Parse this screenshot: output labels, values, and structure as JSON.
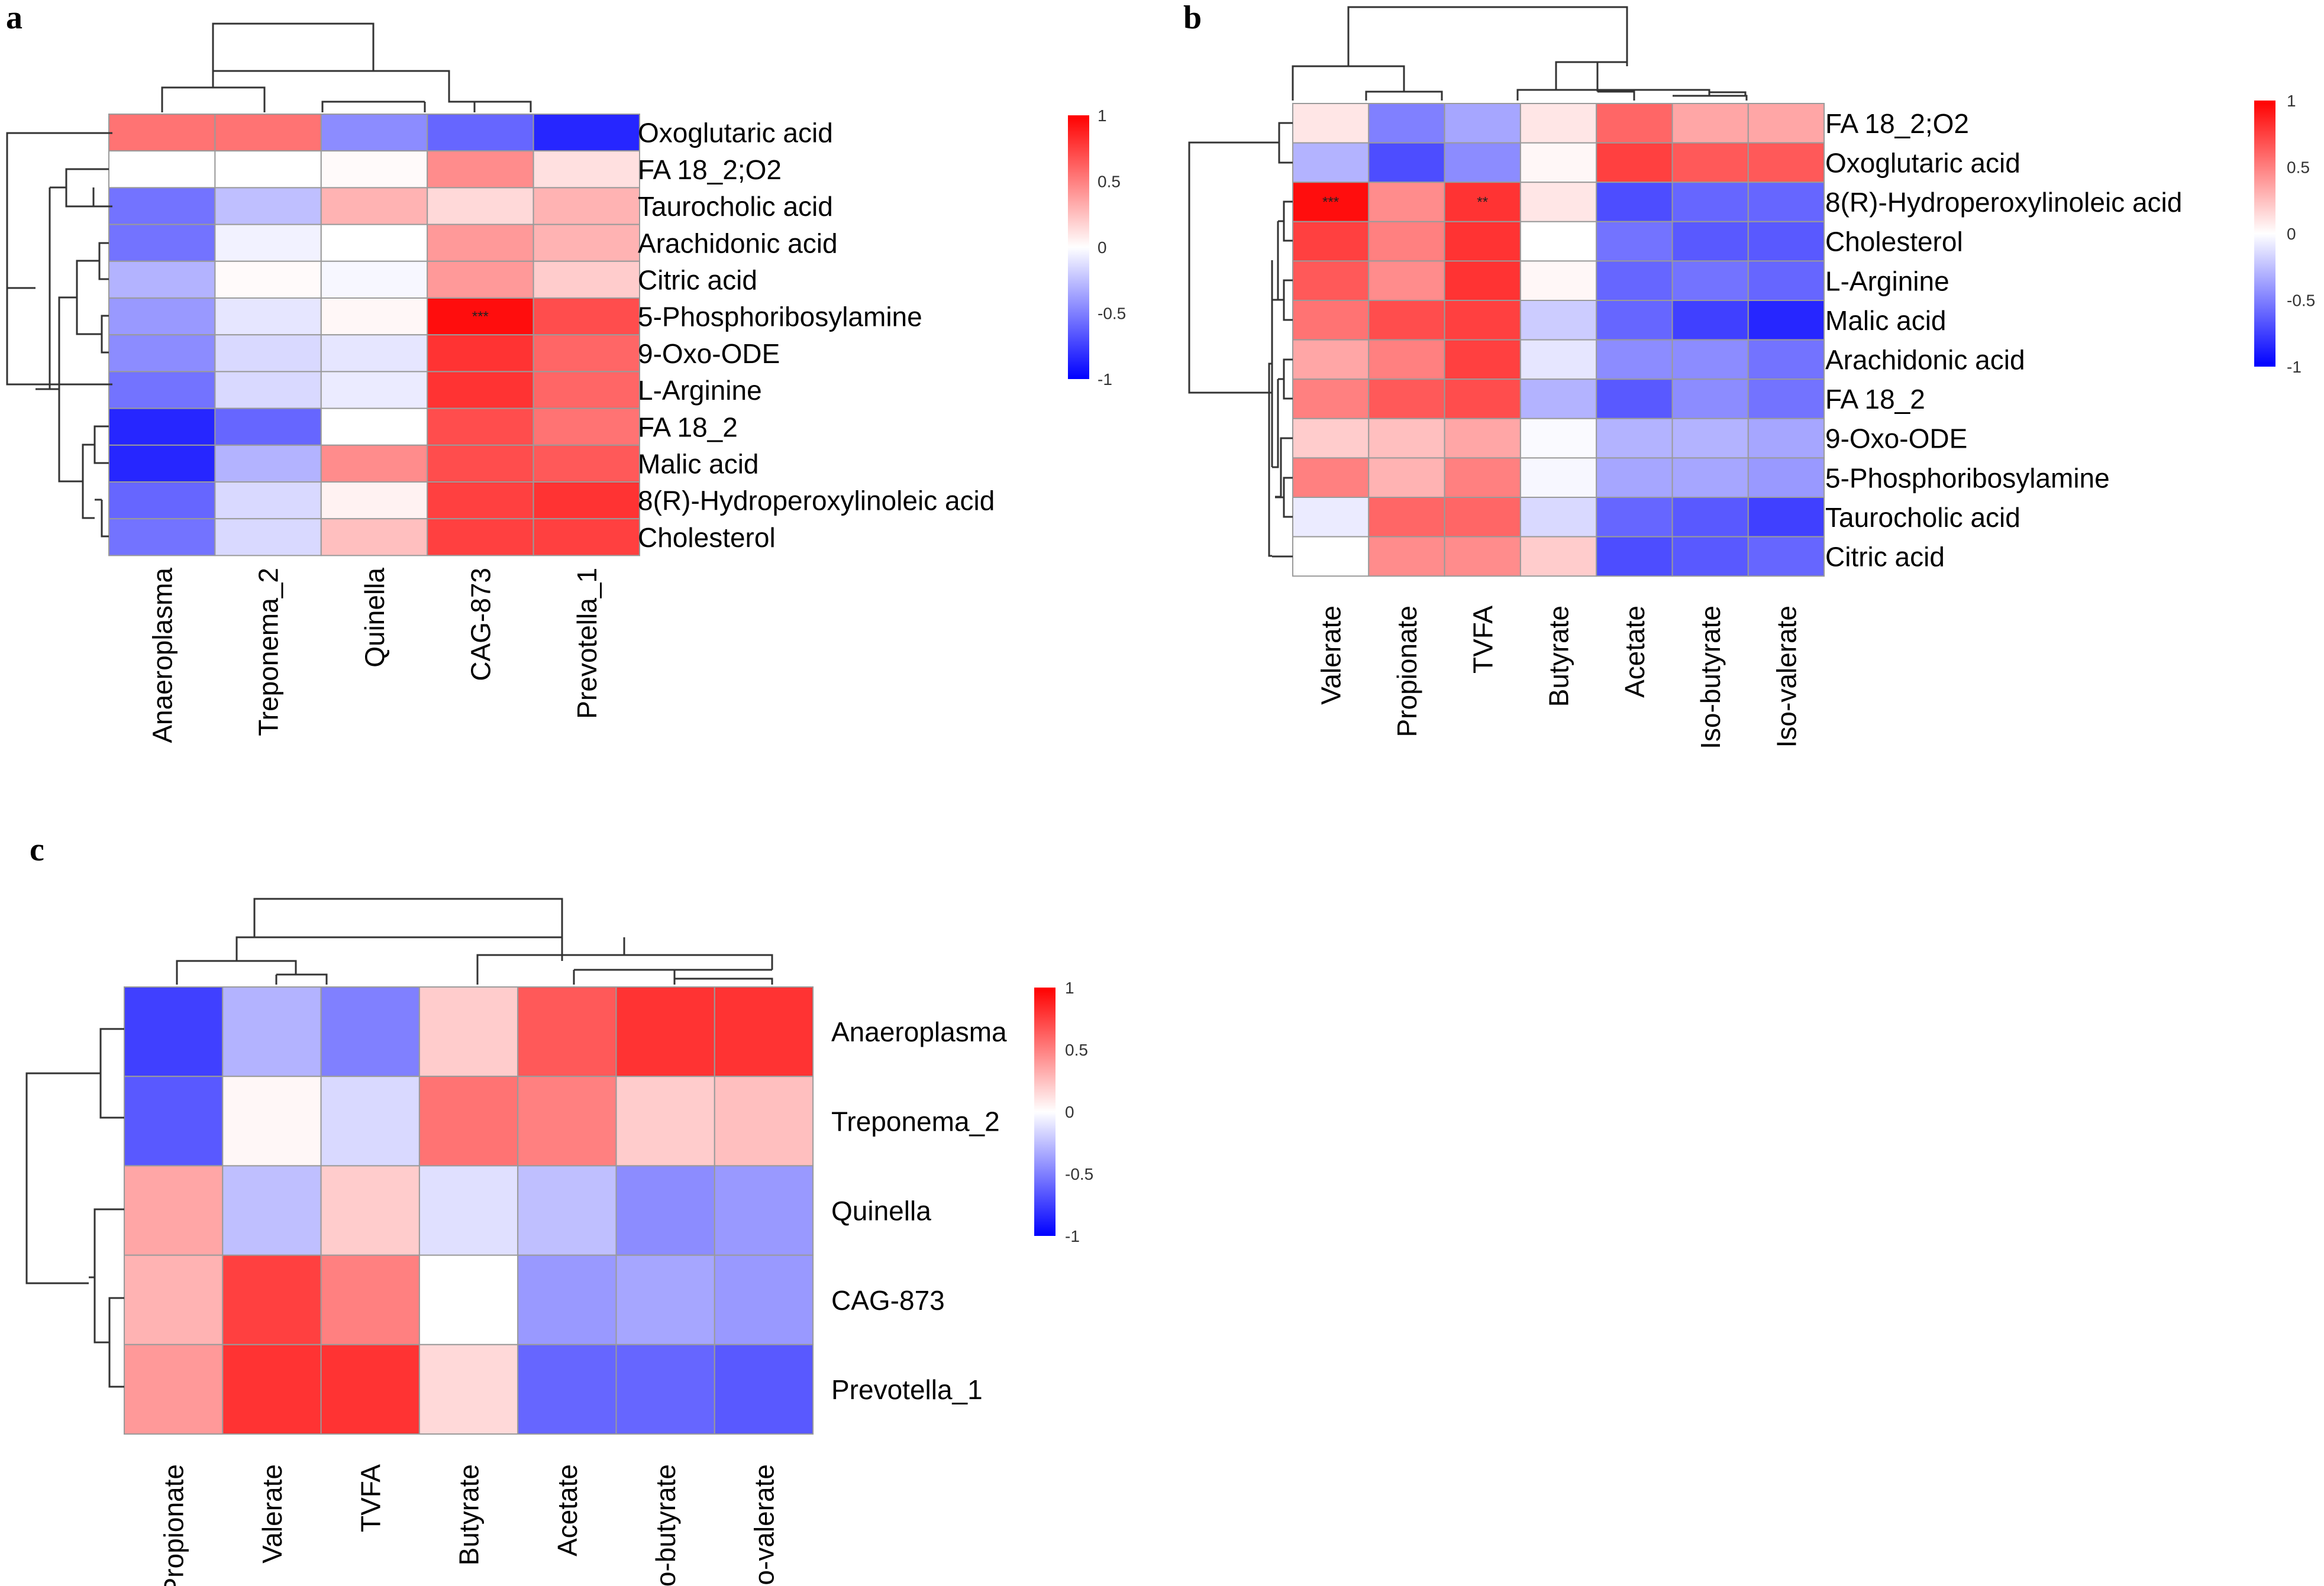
{
  "chart_data": [
    {
      "type": "heatmap",
      "panel": "a",
      "rows": [
        "Oxoglutaric acid",
        "FA 18_2;O2",
        "Taurocholic acid",
        "Arachidonic acid",
        "Citric acid",
        "5-Phosphoribosylamine",
        "9-Oxo-ODE",
        "L-Arginine",
        "FA 18_2",
        "Malic acid",
        "8(R)-Hydroperoxylinoleic acid",
        "Cholesterol"
      ],
      "columns": [
        "Anaeroplasma",
        "Treponema_2",
        "Quinella",
        "CAG-873",
        "Prevotella_1"
      ],
      "values": [
        [
          0.55,
          0.55,
          -0.45,
          -0.6,
          -0.85
        ],
        [
          0.0,
          0.0,
          0.02,
          0.45,
          0.12
        ],
        [
          -0.55,
          -0.25,
          0.3,
          0.15,
          0.3
        ],
        [
          -0.55,
          -0.05,
          0.0,
          0.4,
          0.3
        ],
        [
          -0.3,
          0.02,
          -0.03,
          0.4,
          0.2
        ],
        [
          -0.4,
          -0.1,
          0.03,
          0.95,
          0.7
        ],
        [
          -0.45,
          -0.15,
          -0.1,
          0.8,
          0.6
        ],
        [
          -0.55,
          -0.15,
          -0.08,
          0.8,
          0.6
        ],
        [
          -0.85,
          -0.6,
          0.0,
          0.7,
          0.55
        ],
        [
          -0.85,
          -0.3,
          0.45,
          0.7,
          0.65
        ],
        [
          -0.6,
          -0.15,
          0.05,
          0.75,
          0.8
        ],
        [
          -0.55,
          -0.15,
          0.25,
          0.75,
          0.75
        ]
      ],
      "annotations": [
        {
          "row": "5-Phosphoribosylamine",
          "column": "CAG-873",
          "text": "***"
        }
      ],
      "legend": {
        "ticks": [
          "1",
          "0.5",
          "0",
          "-0.5",
          "-1"
        ],
        "range": [
          -1,
          1
        ]
      }
    },
    {
      "type": "heatmap",
      "panel": "b",
      "rows": [
        "FA 18_2;O2",
        "Oxoglutaric acid",
        "8(R)-Hydroperoxylinoleic acid",
        "Cholesterol",
        "L-Arginine",
        "Malic acid",
        "Arachidonic acid",
        "FA 18_2",
        "9-Oxo-ODE",
        "5-Phosphoribosylamine",
        "Taurocholic acid",
        "Citric acid"
      ],
      "columns": [
        "Valerate",
        "Propionate",
        "TVFA",
        "Butyrate",
        "Acetate",
        "Iso-butyrate",
        "Iso-valerate"
      ],
      "values": [
        [
          0.1,
          -0.5,
          -0.35,
          0.1,
          0.6,
          0.35,
          0.35
        ],
        [
          -0.3,
          -0.7,
          -0.45,
          0.03,
          0.75,
          0.65,
          0.65
        ],
        [
          0.95,
          0.45,
          0.8,
          0.1,
          -0.7,
          -0.6,
          -0.6
        ],
        [
          0.75,
          0.5,
          0.8,
          0.0,
          -0.55,
          -0.65,
          -0.65
        ],
        [
          0.65,
          0.45,
          0.8,
          0.03,
          -0.6,
          -0.55,
          -0.6
        ],
        [
          0.55,
          0.7,
          0.75,
          -0.2,
          -0.6,
          -0.75,
          -0.85
        ],
        [
          0.35,
          0.5,
          0.75,
          -0.1,
          -0.45,
          -0.45,
          -0.55
        ],
        [
          0.5,
          0.65,
          0.7,
          -0.3,
          -0.65,
          -0.45,
          -0.55
        ],
        [
          0.2,
          0.25,
          0.35,
          -0.02,
          -0.3,
          -0.3,
          -0.35
        ],
        [
          0.5,
          0.3,
          0.5,
          -0.03,
          -0.35,
          -0.35,
          -0.4
        ],
        [
          -0.08,
          0.6,
          0.6,
          -0.15,
          -0.6,
          -0.65,
          -0.75
        ],
        [
          0.0,
          0.45,
          0.45,
          0.2,
          -0.7,
          -0.65,
          -0.6
        ]
      ],
      "annotations": [
        {
          "row": "8(R)-Hydroperoxylinoleic acid",
          "column": "Valerate",
          "text": "***"
        },
        {
          "row": "8(R)-Hydroperoxylinoleic acid",
          "column": "TVFA",
          "text": "**"
        }
      ],
      "legend": {
        "ticks": [
          "1",
          "0.5",
          "0",
          "-0.5",
          "-1"
        ],
        "range": [
          -1,
          1
        ]
      }
    },
    {
      "type": "heatmap",
      "panel": "c",
      "rows": [
        "Anaeroplasma",
        "Treponema_2",
        "Quinella",
        "CAG-873",
        "Prevotella_1"
      ],
      "columns": [
        "Propionate",
        "Valerate",
        "TVFA",
        "Butyrate",
        "Acetate",
        "Iso-butyrate",
        "Iso-valerate"
      ],
      "values": [
        [
          -0.75,
          -0.3,
          -0.5,
          0.2,
          0.65,
          0.8,
          0.8
        ],
        [
          -0.65,
          0.03,
          -0.15,
          0.55,
          0.5,
          0.2,
          0.25
        ],
        [
          0.35,
          -0.25,
          0.2,
          -0.12,
          -0.25,
          -0.45,
          -0.4
        ],
        [
          0.3,
          0.75,
          0.5,
          0.0,
          -0.4,
          -0.35,
          -0.4
        ],
        [
          0.4,
          0.8,
          0.8,
          0.15,
          -0.6,
          -0.6,
          -0.65
        ]
      ],
      "annotations": [],
      "legend": {
        "ticks": [
          "1",
          "0.5",
          "0",
          "-0.5",
          "-1"
        ],
        "range": [
          -1,
          1
        ]
      }
    }
  ]
}
